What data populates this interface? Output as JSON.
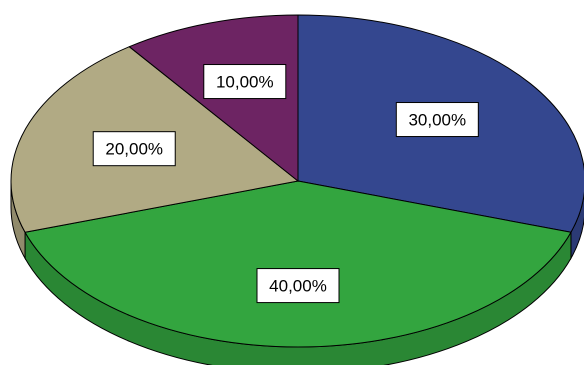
{
  "chart_data": {
    "type": "pie",
    "style": "3d-tilted",
    "slices": [
      {
        "value": 30,
        "label": "30,00%",
        "color": "#34478f"
      },
      {
        "value": 40,
        "label": "40,00%",
        "color": "#33a53f"
      },
      {
        "value": 20,
        "label": "20,00%",
        "color": "#b1aa84"
      },
      {
        "value": 10,
        "label": "10,00%",
        "color": "#6d2463"
      }
    ],
    "edge_color": "#000000"
  }
}
